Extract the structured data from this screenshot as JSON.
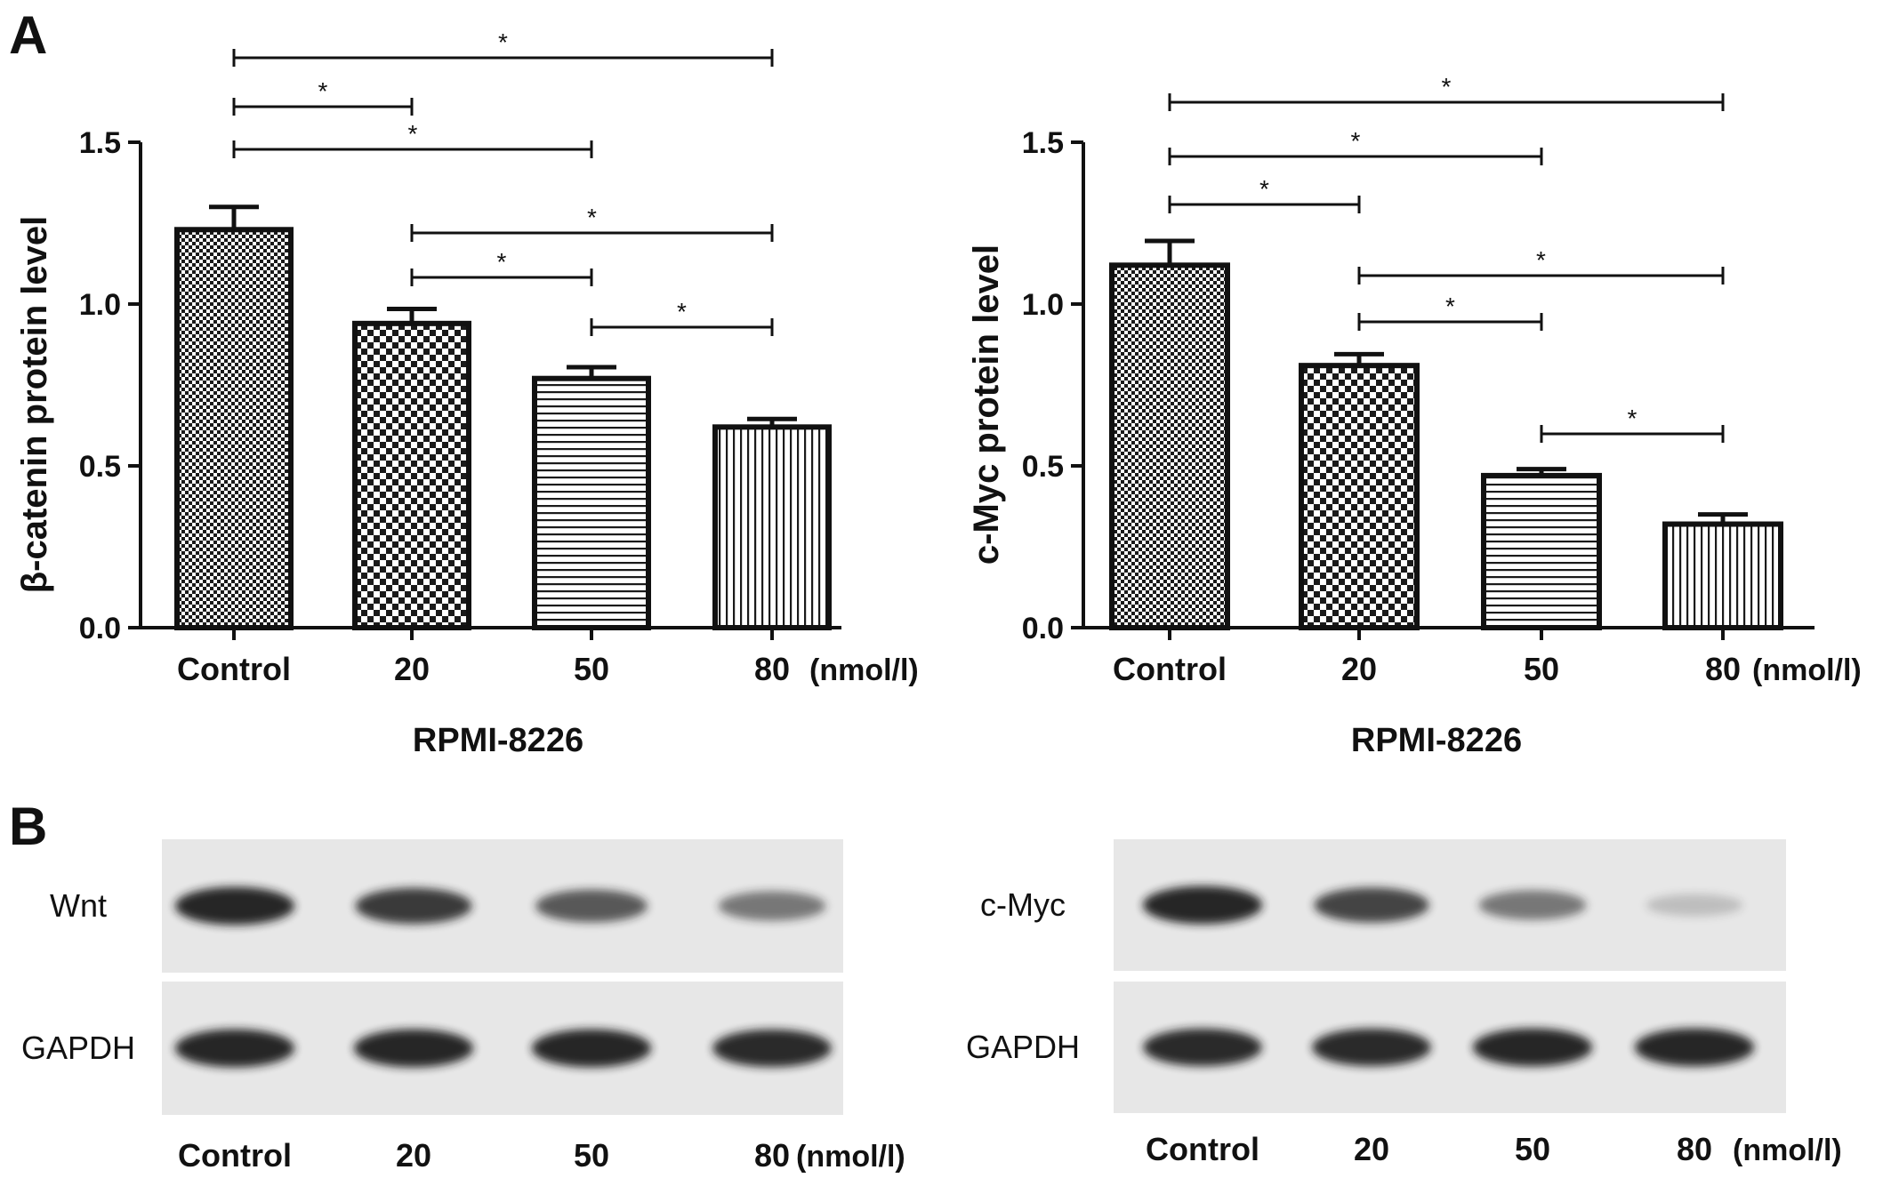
{
  "panel_labels": {
    "a": "A",
    "b": "B"
  },
  "colors": {
    "ink": "#111111",
    "blot_bg": "#e7e7e7",
    "band": "#1a1a1a"
  },
  "chart_data": [
    {
      "type": "bar",
      "ylabel": "β-catenin protein level",
      "xlabel": "RPMI-8226",
      "unit": "(nmol/l)",
      "categories": [
        "Control",
        "20",
        "50",
        "80"
      ],
      "values": [
        1.23,
        0.94,
        0.77,
        0.62
      ],
      "errors": [
        0.07,
        0.045,
        0.035,
        0.025
      ],
      "patterns": [
        "fine-checker",
        "checker",
        "horizontal-lines",
        "vertical-lines"
      ],
      "ylim": [
        0,
        1.5
      ],
      "yticks": [
        "0.0",
        "0.5",
        "1.0",
        "1.5"
      ],
      "significance": [
        {
          "from": 0,
          "to": 3,
          "label": "*"
        },
        {
          "from": 0,
          "to": 1,
          "label": "*"
        },
        {
          "from": 0,
          "to": 2,
          "label": "*"
        },
        {
          "from": 1,
          "to": 3,
          "label": "*"
        },
        {
          "from": 1,
          "to": 2,
          "label": "*"
        },
        {
          "from": 2,
          "to": 3,
          "label": "*"
        }
      ]
    },
    {
      "type": "bar",
      "ylabel": "c-Myc protein level",
      "xlabel": "RPMI-8226",
      "unit": "(nmol/l)",
      "categories": [
        "Control",
        "20",
        "50",
        "80"
      ],
      "values": [
        1.12,
        0.81,
        0.47,
        0.32
      ],
      "errors": [
        0.075,
        0.035,
        0.02,
        0.03
      ],
      "patterns": [
        "fine-checker",
        "checker",
        "horizontal-lines",
        "vertical-lines"
      ],
      "ylim": [
        0,
        1.5
      ],
      "yticks": [
        "0.0",
        "0.5",
        "1.0",
        "1.5"
      ],
      "significance": [
        {
          "from": 0,
          "to": 3,
          "label": "*"
        },
        {
          "from": 0,
          "to": 2,
          "label": "*"
        },
        {
          "from": 0,
          "to": 1,
          "label": "*"
        },
        {
          "from": 1,
          "to": 3,
          "label": "*"
        },
        {
          "from": 1,
          "to": 2,
          "label": "*"
        },
        {
          "from": 2,
          "to": 3,
          "label": "*"
        }
      ]
    }
  ],
  "blots": [
    {
      "lane_labels": [
        "Control",
        "20",
        "50",
        "80"
      ],
      "unit": "(nmol/l)",
      "rows": [
        {
          "label": "Wnt",
          "intensities": [
            0.95,
            0.85,
            0.7,
            0.55
          ]
        },
        {
          "label": "GAPDH",
          "intensities": [
            0.95,
            0.95,
            0.95,
            0.93
          ]
        }
      ]
    },
    {
      "lane_labels": [
        "Control",
        "20",
        "50",
        "80"
      ],
      "unit": "(nmol/l)",
      "rows": [
        {
          "label": "c-Myc",
          "intensities": [
            0.95,
            0.8,
            0.55,
            0.2
          ]
        },
        {
          "label": "GAPDH",
          "intensities": [
            0.93,
            0.93,
            0.95,
            0.95
          ]
        }
      ]
    }
  ]
}
